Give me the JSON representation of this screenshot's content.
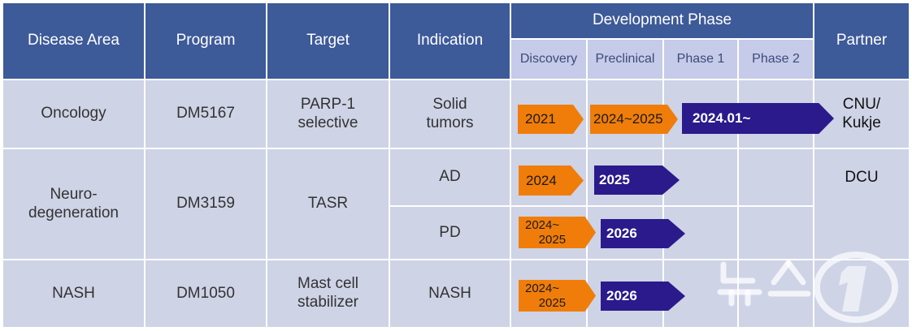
{
  "headers": {
    "disease_area": "Disease Area",
    "program": "Program",
    "target": "Target",
    "indication": "Indication",
    "development_phase": "Development Phase",
    "partner": "Partner",
    "phases": [
      "Discovery",
      "Preclinical",
      "Phase 1",
      "Phase 2"
    ]
  },
  "rows": {
    "oncology": {
      "disease_area": "Oncology",
      "program": "DM5167",
      "target": "PARP-1\nselective",
      "indication": "Solid\ntumors",
      "partner": "CNU/\nKukje",
      "milestones": [
        "2021",
        "2024~2025",
        "2024.01~"
      ]
    },
    "neuro": {
      "disease_area": "Neuro-\ndegeneration",
      "program": "DM3159",
      "target": "TASR",
      "partner": "DCU",
      "ad": {
        "indication": "AD",
        "milestones": [
          "2024",
          "2025"
        ]
      },
      "pd": {
        "indication": "PD",
        "milestones": [
          "2024~\n    2025",
          "2026"
        ]
      }
    },
    "nash": {
      "disease_area": "NASH",
      "program": "DM1050",
      "target": "Mast cell\nstabilizer",
      "indication": "NASH",
      "milestones": [
        "2024~\n    2025",
        "2026"
      ]
    }
  },
  "colors": {
    "header_bg": "#3d5a99",
    "subheader_bg": "#c5cbe8",
    "body_bg": "#ced3e6",
    "orange": "#f07d0a",
    "navy": "#2a1a8c"
  },
  "watermark": {
    "text": "뉴스1"
  }
}
